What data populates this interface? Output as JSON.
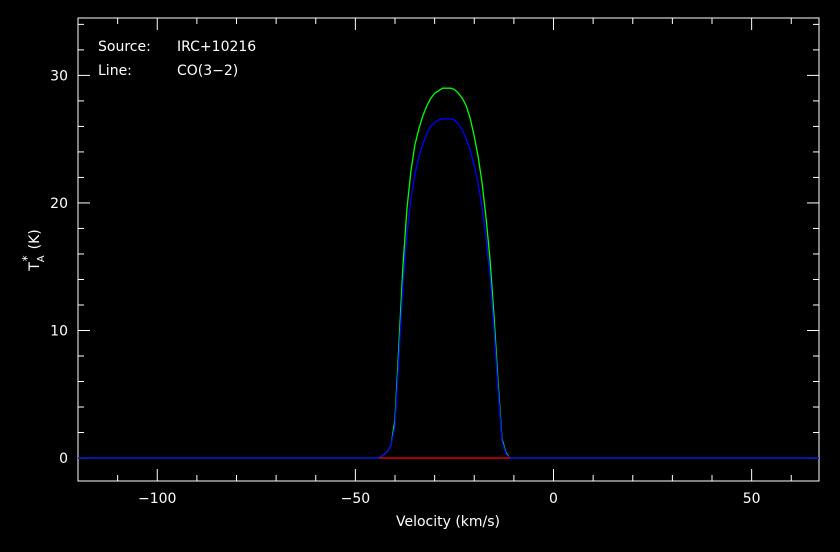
{
  "annotations": {
    "source_label": "Source:",
    "source_value": "IRC+10216",
    "line_label": "Line:",
    "line_value": "CO(3−2)"
  },
  "chart_data": {
    "type": "line",
    "title": "",
    "xlabel": "Velocity (km/s)",
    "ylabel_main": "T",
    "ylabel_sub": "A",
    "ylabel_sup": "*",
    "ylabel_unit": "(K)",
    "xlim": [
      -120,
      67
    ],
    "ylim": [
      -1.8,
      34.5
    ],
    "x_ticks": [
      -100,
      -50,
      0,
      50
    ],
    "x_tick_labels": [
      "−100",
      "−50",
      "0",
      "50"
    ],
    "y_ticks": [
      0,
      10,
      20,
      30
    ],
    "y_tick_labels": [
      "0",
      "10",
      "20",
      "30"
    ],
    "grid": false,
    "legend": "none",
    "series": [
      {
        "color": "#00ff00",
        "x": [
          -120,
          -44,
          -42,
          -41,
          -40,
          -39,
          -38,
          -37,
          -36,
          -35,
          -34,
          -33,
          -32,
          -31,
          -30,
          -29,
          -28,
          -27,
          -26,
          -25,
          -24,
          -23,
          -22,
          -21,
          -20,
          -19,
          -18,
          -17,
          -16,
          -15,
          -14,
          -13,
          -12,
          -11,
          67
        ],
        "values": [
          0,
          0,
          0.5,
          1.0,
          3.0,
          9.0,
          15.0,
          19.5,
          22.5,
          24.5,
          25.8,
          26.8,
          27.6,
          28.2,
          28.6,
          28.8,
          29.0,
          29.0,
          29.0,
          28.9,
          28.6,
          28.2,
          27.6,
          26.6,
          25.2,
          23.6,
          21.5,
          18.8,
          15.5,
          11.0,
          6.0,
          1.5,
          0.4,
          0,
          0
        ]
      },
      {
        "color": "#0000ff",
        "x": [
          -120,
          -44,
          -42,
          -41,
          -40,
          -39,
          -38,
          -37,
          -36,
          -35,
          -34,
          -33,
          -32,
          -31,
          -30,
          -29,
          -28,
          -27,
          -26,
          -25,
          -24,
          -23,
          -22,
          -21,
          -20,
          -19,
          -18,
          -17,
          -16,
          -15,
          -14,
          -13,
          -12,
          -11,
          67
        ],
        "values": [
          0,
          0,
          0.5,
          1.0,
          2.5,
          8.0,
          13.5,
          17.5,
          20.3,
          22.2,
          23.6,
          24.6,
          25.4,
          26.0,
          26.3,
          26.5,
          26.6,
          26.6,
          26.6,
          26.5,
          26.2,
          25.7,
          25.0,
          24.1,
          22.9,
          21.5,
          19.6,
          17.2,
          14.2,
          10.0,
          5.4,
          1.3,
          0.3,
          0,
          0
        ]
      },
      {
        "color": "#ff0000",
        "x": [
          -44,
          -11
        ],
        "values": [
          0,
          0
        ]
      }
    ],
    "colors": {
      "axes": "#ffffff",
      "background": "#000000"
    }
  }
}
